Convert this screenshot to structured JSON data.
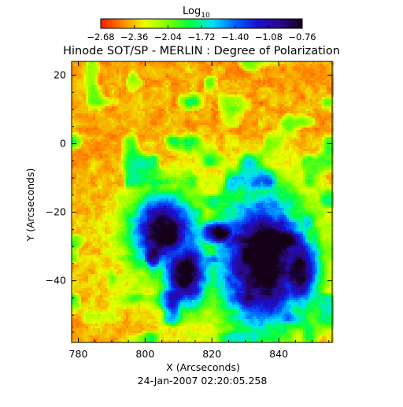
{
  "colorbar": {
    "label": "Log",
    "label_subscript": "10",
    "ticks": [
      "-2.68",
      "-2.36",
      "-2.04",
      "-1.72",
      "-1.40",
      "-1.08",
      "-0.76"
    ],
    "range": [
      -2.68,
      -0.76
    ],
    "colors": [
      "#ff1a00",
      "#ff8a00",
      "#e8ff00",
      "#7dff00",
      "#00ff40",
      "#00e0ff",
      "#0060ff",
      "#1a10d0",
      "#2a0a8a",
      "#140018"
    ]
  },
  "chart_data": {
    "type": "heatmap",
    "title": "Hinode SOT/SP - MERLIN : Degree of Polarization",
    "xlabel": "X (Arcseconds)",
    "ylabel": "Y (Arcseconds)",
    "xlim": [
      778,
      856
    ],
    "ylim": [
      -58,
      24
    ],
    "xticks": [
      780,
      800,
      820,
      840
    ],
    "yticks": [
      -40,
      -20,
      0,
      20
    ],
    "colorscale": "log10",
    "value_range": [
      -2.68,
      -0.76
    ],
    "features": [
      {
        "x": 805,
        "y": -25,
        "rx": 6,
        "ry": 7
      },
      {
        "x": 812,
        "y": -38,
        "rx": 4,
        "ry": 6
      },
      {
        "x": 822,
        "y": -26,
        "rx": 3,
        "ry": 2
      },
      {
        "x": 836,
        "y": -35,
        "rx": 8,
        "ry": 13
      },
      {
        "x": 846,
        "y": -37,
        "rx": 4,
        "ry": 7
      }
    ],
    "date_label": "24-Jan-2007 02:20:05.258"
  }
}
